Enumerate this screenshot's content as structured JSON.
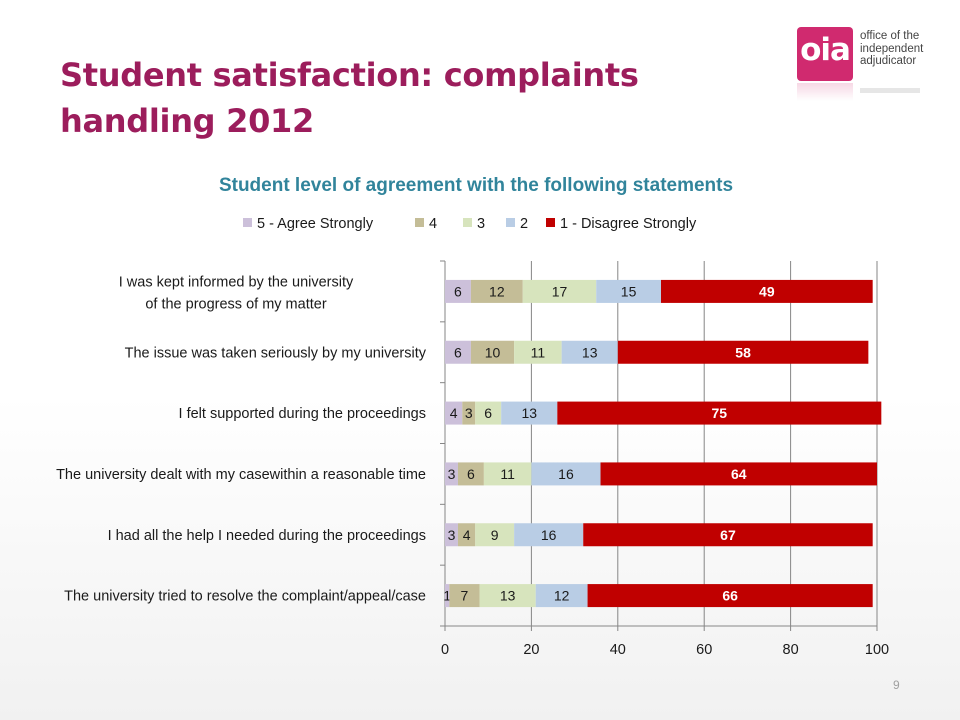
{
  "slide": {
    "title": "Student satisfaction: complaints handling 2012",
    "page_number": "9"
  },
  "logo": {
    "mark": "oia",
    "text_lines": [
      "office of the",
      "independent",
      "adjudicator"
    ]
  },
  "colors": {
    "title": "#9c1d5c",
    "chart_title": "#31849b",
    "logo": "#d02a6f"
  },
  "chart_data": {
    "type": "bar",
    "orientation": "horizontal",
    "stacked": true,
    "title": "Student level of agreement with the following statements",
    "xlim": [
      0,
      100
    ],
    "x_ticks": [
      0,
      20,
      40,
      60,
      80,
      100
    ],
    "legend_position": "top",
    "grid": true,
    "categories": [
      "I was kept informed by the university of the progress of my matter",
      "The issue was taken seriously by my university",
      "I felt supported during the proceedings",
      "The university dealt with my casewithin a reasonable time",
      "I had all the help I needed during the proceedings",
      "The university tried to resolve the complaint/appeal/case"
    ],
    "series": [
      {
        "name": "5 - Agree Strongly",
        "color": "#ccc0da",
        "values": [
          6,
          6,
          4,
          3,
          3,
          1
        ]
      },
      {
        "name": "4",
        "color": "#c4bd97",
        "values": [
          12,
          10,
          3,
          6,
          4,
          7
        ]
      },
      {
        "name": "3",
        "color": "#d7e4bd",
        "values": [
          17,
          11,
          6,
          11,
          9,
          13
        ]
      },
      {
        "name": "2",
        "color": "#b9cde5",
        "values": [
          15,
          13,
          13,
          16,
          16,
          12
        ]
      },
      {
        "name": "1 - Disagree Strongly",
        "color": "#c00000",
        "values": [
          49,
          58,
          75,
          64,
          67,
          66
        ]
      }
    ]
  }
}
